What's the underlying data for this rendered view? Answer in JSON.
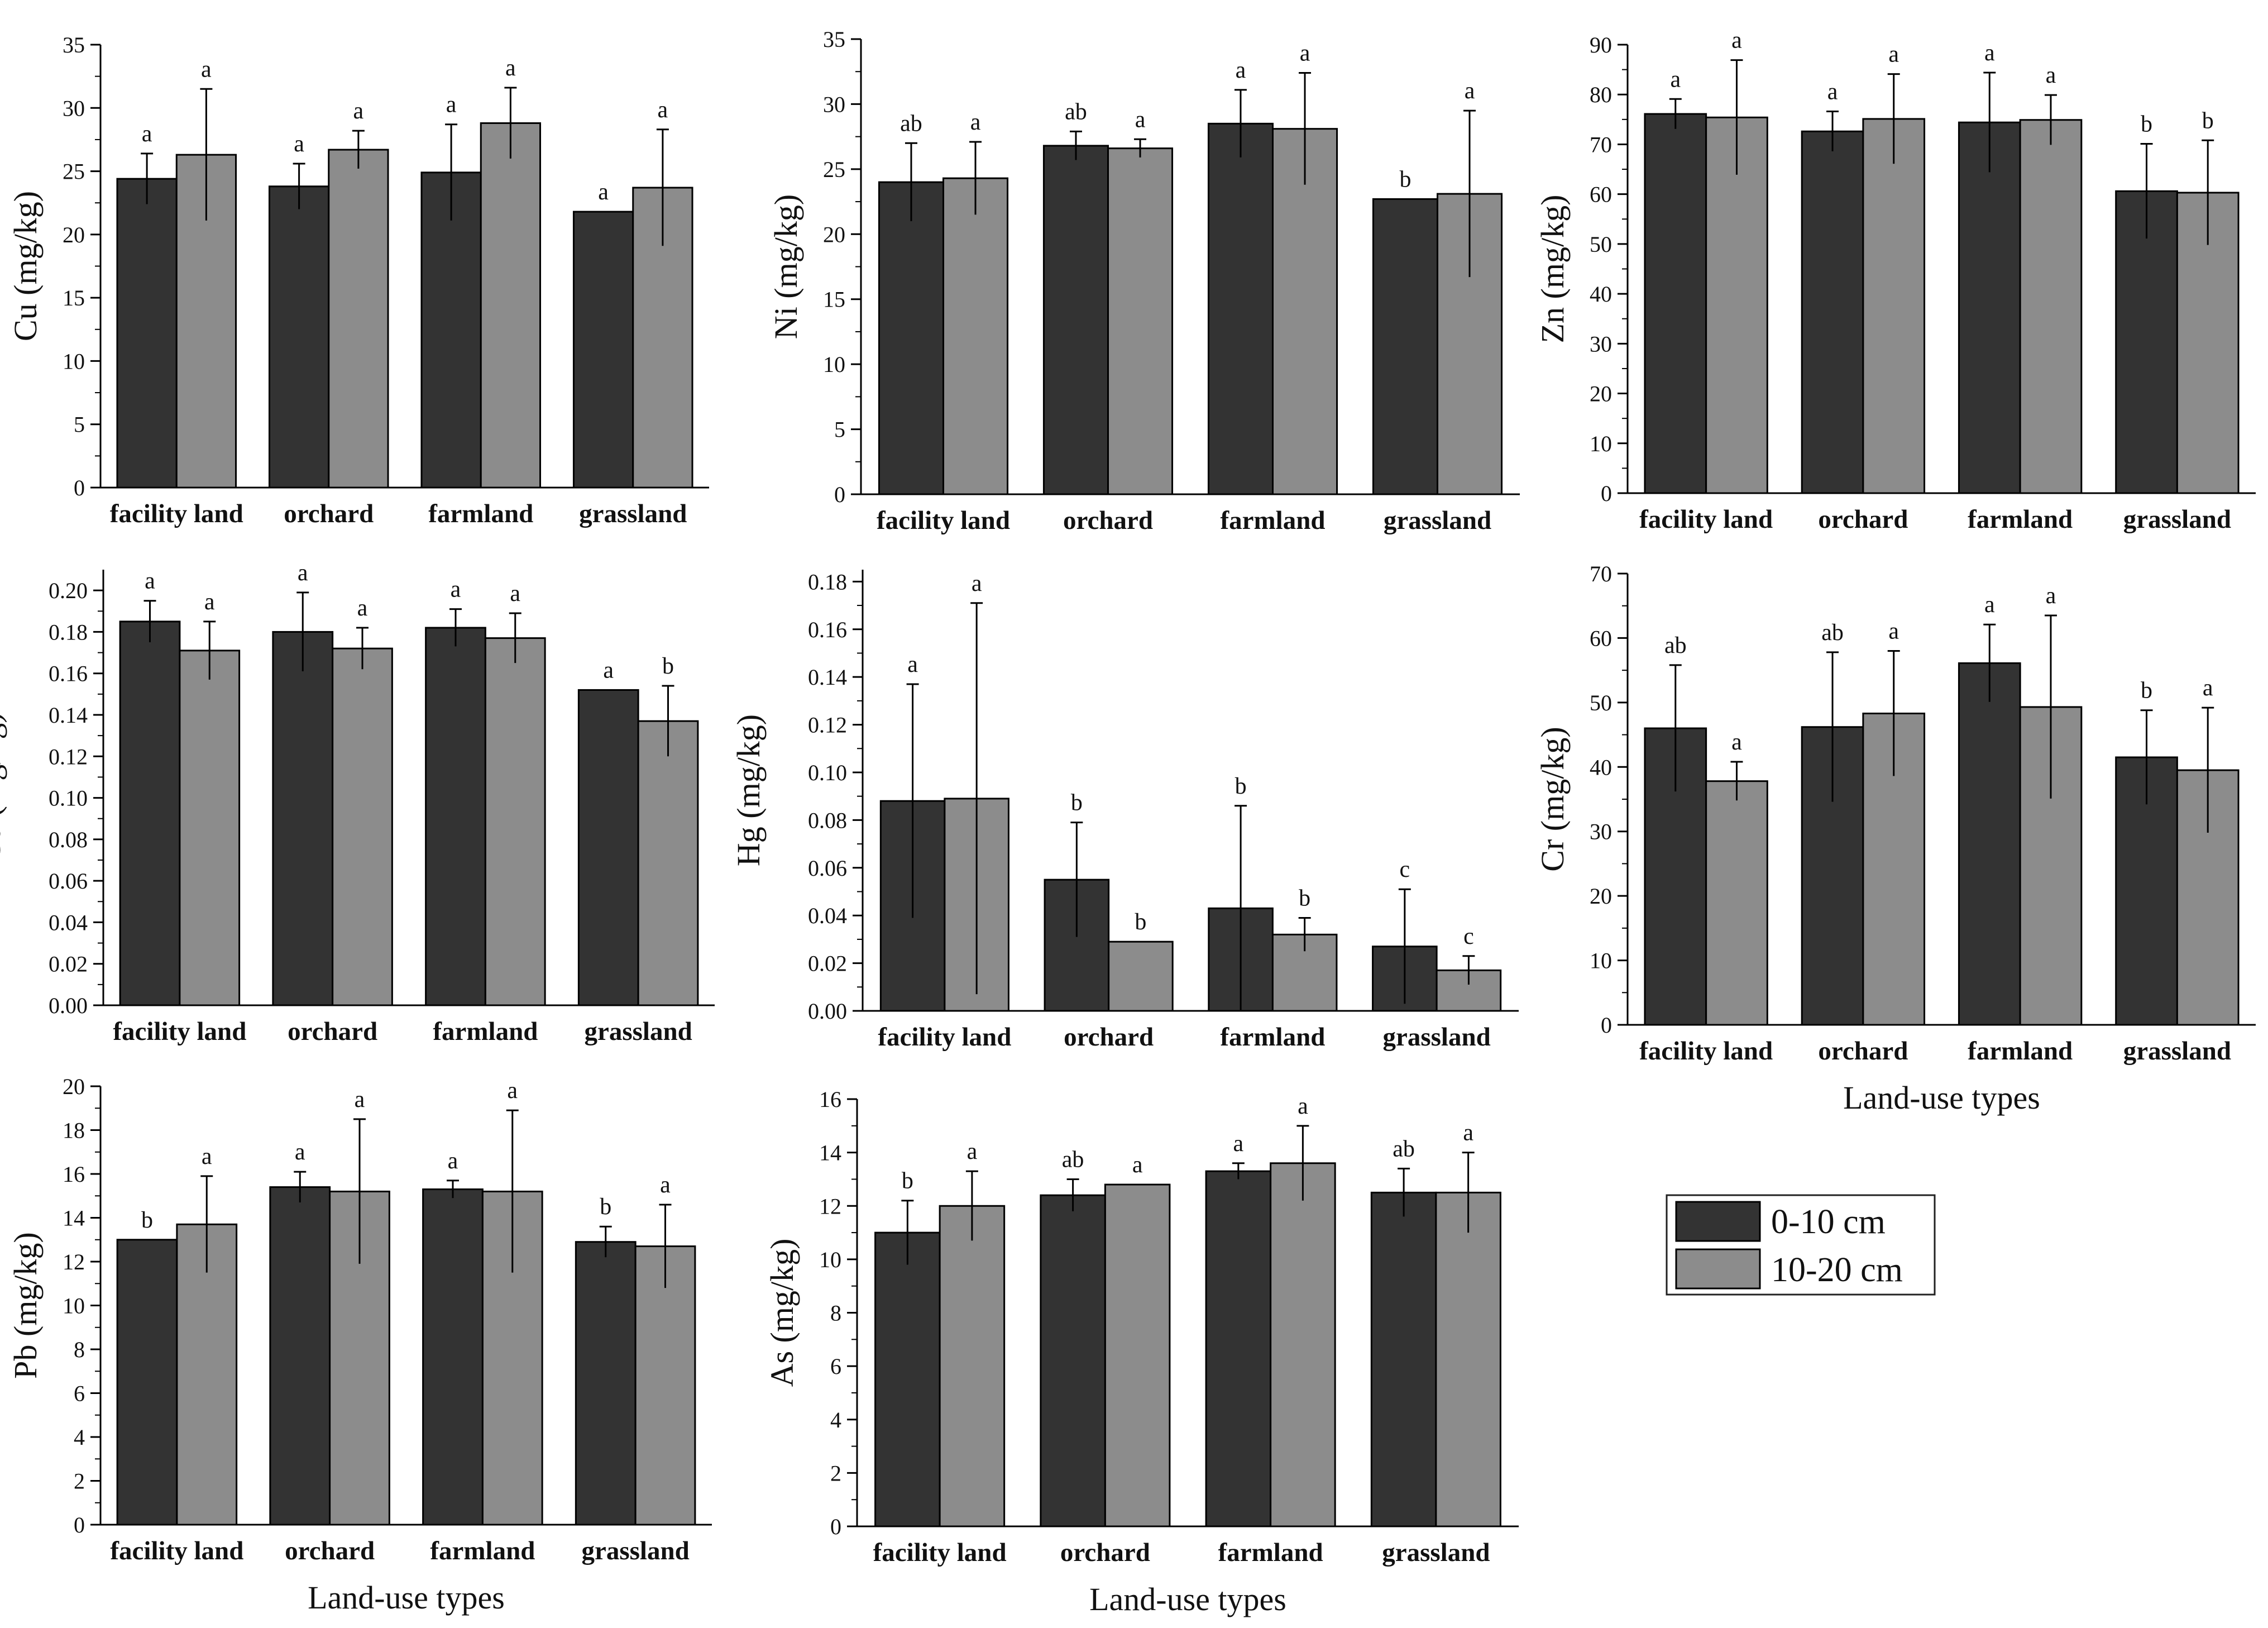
{
  "figure": {
    "x_axis_title": "Land-use types",
    "legend": [
      {
        "label": "0-10 cm",
        "color": "#333333"
      },
      {
        "label": "10-20 cm",
        "color": "#8c8c8c"
      }
    ]
  },
  "chart_data": [
    {
      "type": "bar",
      "element": "Cu",
      "ylabel": "Cu (mg/kg)",
      "categories": [
        "facility land",
        "orchard",
        "farmland",
        "grassland"
      ],
      "ylim": [
        0,
        35
      ],
      "yticks": [
        0,
        5,
        10,
        15,
        20,
        25,
        30,
        35
      ],
      "series": [
        {
          "name": "0-10 cm",
          "values": [
            24.4,
            23.8,
            24.9,
            21.8
          ],
          "err": [
            2.0,
            1.8,
            3.8,
            0
          ],
          "letters": [
            "a",
            "a",
            "a",
            "a"
          ]
        },
        {
          "name": "10-20 cm",
          "values": [
            26.3,
            26.7,
            28.8,
            23.7
          ],
          "err": [
            5.2,
            1.5,
            2.8,
            4.6
          ],
          "letters": [
            "a",
            "a",
            "a",
            "a"
          ]
        }
      ],
      "x_title": ""
    },
    {
      "type": "bar",
      "element": "Ni",
      "ylabel": "Ni (mg/kg)",
      "categories": [
        "facility land",
        "orchard",
        "farmland",
        "grassland"
      ],
      "ylim": [
        0,
        35
      ],
      "yticks": [
        0,
        5,
        10,
        15,
        20,
        25,
        30,
        35
      ],
      "series": [
        {
          "name": "0-10 cm",
          "values": [
            24.0,
            26.8,
            28.5,
            22.7
          ],
          "err": [
            3.0,
            1.1,
            2.6,
            0
          ],
          "letters": [
            "ab",
            "ab",
            "a",
            "b"
          ]
        },
        {
          "name": "10-20 cm",
          "values": [
            24.3,
            26.6,
            28.1,
            23.1
          ],
          "err": [
            2.8,
            0.7,
            4.3,
            6.4
          ],
          "letters": [
            "a",
            "a",
            "a",
            "a"
          ]
        }
      ],
      "x_title": ""
    },
    {
      "type": "bar",
      "element": "Zn",
      "ylabel": "Zn (mg/kg)",
      "categories": [
        "facility land",
        "orchard",
        "farmland",
        "grassland"
      ],
      "ylim": [
        0,
        90
      ],
      "yticks": [
        0,
        10,
        20,
        30,
        40,
        50,
        60,
        70,
        80,
        90
      ],
      "series": [
        {
          "name": "0-10 cm",
          "values": [
            76.1,
            72.6,
            74.4,
            60.6
          ],
          "err": [
            3.0,
            4.0,
            10.0,
            9.5
          ],
          "letters": [
            "a",
            "a",
            "a",
            "b"
          ]
        },
        {
          "name": "10-20 cm",
          "values": [
            75.4,
            75.1,
            74.9,
            60.3
          ],
          "err": [
            11.5,
            9.0,
            5.0,
            10.5
          ],
          "letters": [
            "a",
            "a",
            "a",
            "b"
          ]
        }
      ],
      "x_title": ""
    },
    {
      "type": "bar",
      "element": "Cd",
      "ylabel": "Cd (mg/kg)",
      "categories": [
        "facility land",
        "orchard",
        "farmland",
        "grassland"
      ],
      "ylim": [
        0,
        0.21
      ],
      "yticks": [
        0.0,
        0.02,
        0.04,
        0.06,
        0.08,
        0.1,
        0.12,
        0.14,
        0.16,
        0.18,
        0.2
      ],
      "series": [
        {
          "name": "0-10 cm",
          "values": [
            0.185,
            0.18,
            0.182,
            0.152
          ],
          "err": [
            0.01,
            0.019,
            0.009,
            0
          ],
          "letters": [
            "a",
            "a",
            "a",
            "a"
          ]
        },
        {
          "name": "10-20 cm",
          "values": [
            0.171,
            0.172,
            0.177,
            0.137
          ],
          "err": [
            0.014,
            0.01,
            0.012,
            0.017
          ],
          "letters": [
            "a",
            "a",
            "a",
            "b"
          ]
        }
      ],
      "x_title": ""
    },
    {
      "type": "bar",
      "element": "Hg",
      "ylabel": "Hg (mg/kg)",
      "categories": [
        "facility land",
        "orchard",
        "farmland",
        "grassland"
      ],
      "ylim": [
        0,
        0.185
      ],
      "yticks": [
        0.0,
        0.02,
        0.04,
        0.06,
        0.08,
        0.1,
        0.12,
        0.14,
        0.16,
        0.18
      ],
      "series": [
        {
          "name": "0-10 cm",
          "values": [
            0.088,
            0.055,
            0.043,
            0.027
          ],
          "err": [
            0.049,
            0.024,
            0.043,
            0.024
          ],
          "letters": [
            "a",
            "b",
            "b",
            "c"
          ]
        },
        {
          "name": "10-20 cm",
          "values": [
            0.089,
            0.029,
            0.032,
            0.017
          ],
          "err": [
            0.082,
            0,
            0.007,
            0.006
          ],
          "letters": [
            "a",
            "b",
            "b",
            "c"
          ]
        }
      ],
      "x_title": ""
    },
    {
      "type": "bar",
      "element": "Cr",
      "ylabel": "Cr (mg/kg)",
      "categories": [
        "facility land",
        "orchard",
        "farmland",
        "grassland"
      ],
      "ylim": [
        0,
        70
      ],
      "yticks": [
        0,
        10,
        20,
        30,
        40,
        50,
        60,
        70
      ],
      "series": [
        {
          "name": "0-10 cm",
          "values": [
            46.0,
            46.2,
            56.1,
            41.5
          ],
          "err": [
            9.8,
            11.6,
            6.0,
            7.3
          ],
          "letters": [
            "ab",
            "ab",
            "a",
            "b"
          ]
        },
        {
          "name": "10-20 cm",
          "values": [
            37.8,
            48.3,
            49.3,
            39.5
          ],
          "err": [
            3.0,
            9.7,
            14.2,
            9.7
          ],
          "letters": [
            "a",
            "a",
            "a",
            "a"
          ]
        }
      ],
      "x_title": "Land-use types"
    },
    {
      "type": "bar",
      "element": "Pb",
      "ylabel": "Pb (mg/kg)",
      "categories": [
        "facility land",
        "orchard",
        "farmland",
        "grassland"
      ],
      "ylim": [
        0,
        20
      ],
      "yticks": [
        0,
        2,
        4,
        6,
        8,
        10,
        12,
        14,
        16,
        18,
        20
      ],
      "series": [
        {
          "name": "0-10 cm",
          "values": [
            13.0,
            15.4,
            15.3,
            12.9
          ],
          "err": [
            0,
            0.7,
            0.4,
            0.7
          ],
          "letters": [
            "b",
            "a",
            "a",
            "b"
          ]
        },
        {
          "name": "10-20 cm",
          "values": [
            13.7,
            15.2,
            15.2,
            12.7
          ],
          "err": [
            2.2,
            3.3,
            3.7,
            1.9
          ],
          "letters": [
            "a",
            "a",
            "a",
            "a"
          ]
        }
      ],
      "x_title": "Land-use types"
    },
    {
      "type": "bar",
      "element": "As",
      "ylabel": "As (mg/kg)",
      "categories": [
        "facility land",
        "orchard",
        "farmland",
        "grassland"
      ],
      "ylim": [
        0,
        16
      ],
      "yticks": [
        0,
        2,
        4,
        6,
        8,
        10,
        12,
        14,
        16
      ],
      "series": [
        {
          "name": "0-10 cm",
          "values": [
            11.0,
            12.4,
            13.3,
            12.5
          ],
          "err": [
            1.2,
            0.6,
            0.3,
            0.9
          ],
          "letters": [
            "b",
            "ab",
            "a",
            "ab"
          ]
        },
        {
          "name": "10-20 cm",
          "values": [
            12.0,
            12.8,
            13.6,
            12.5
          ],
          "err": [
            1.3,
            0,
            1.4,
            1.5
          ],
          "letters": [
            "a",
            "a",
            "a",
            "a"
          ]
        }
      ],
      "x_title": "Land-use types"
    }
  ]
}
